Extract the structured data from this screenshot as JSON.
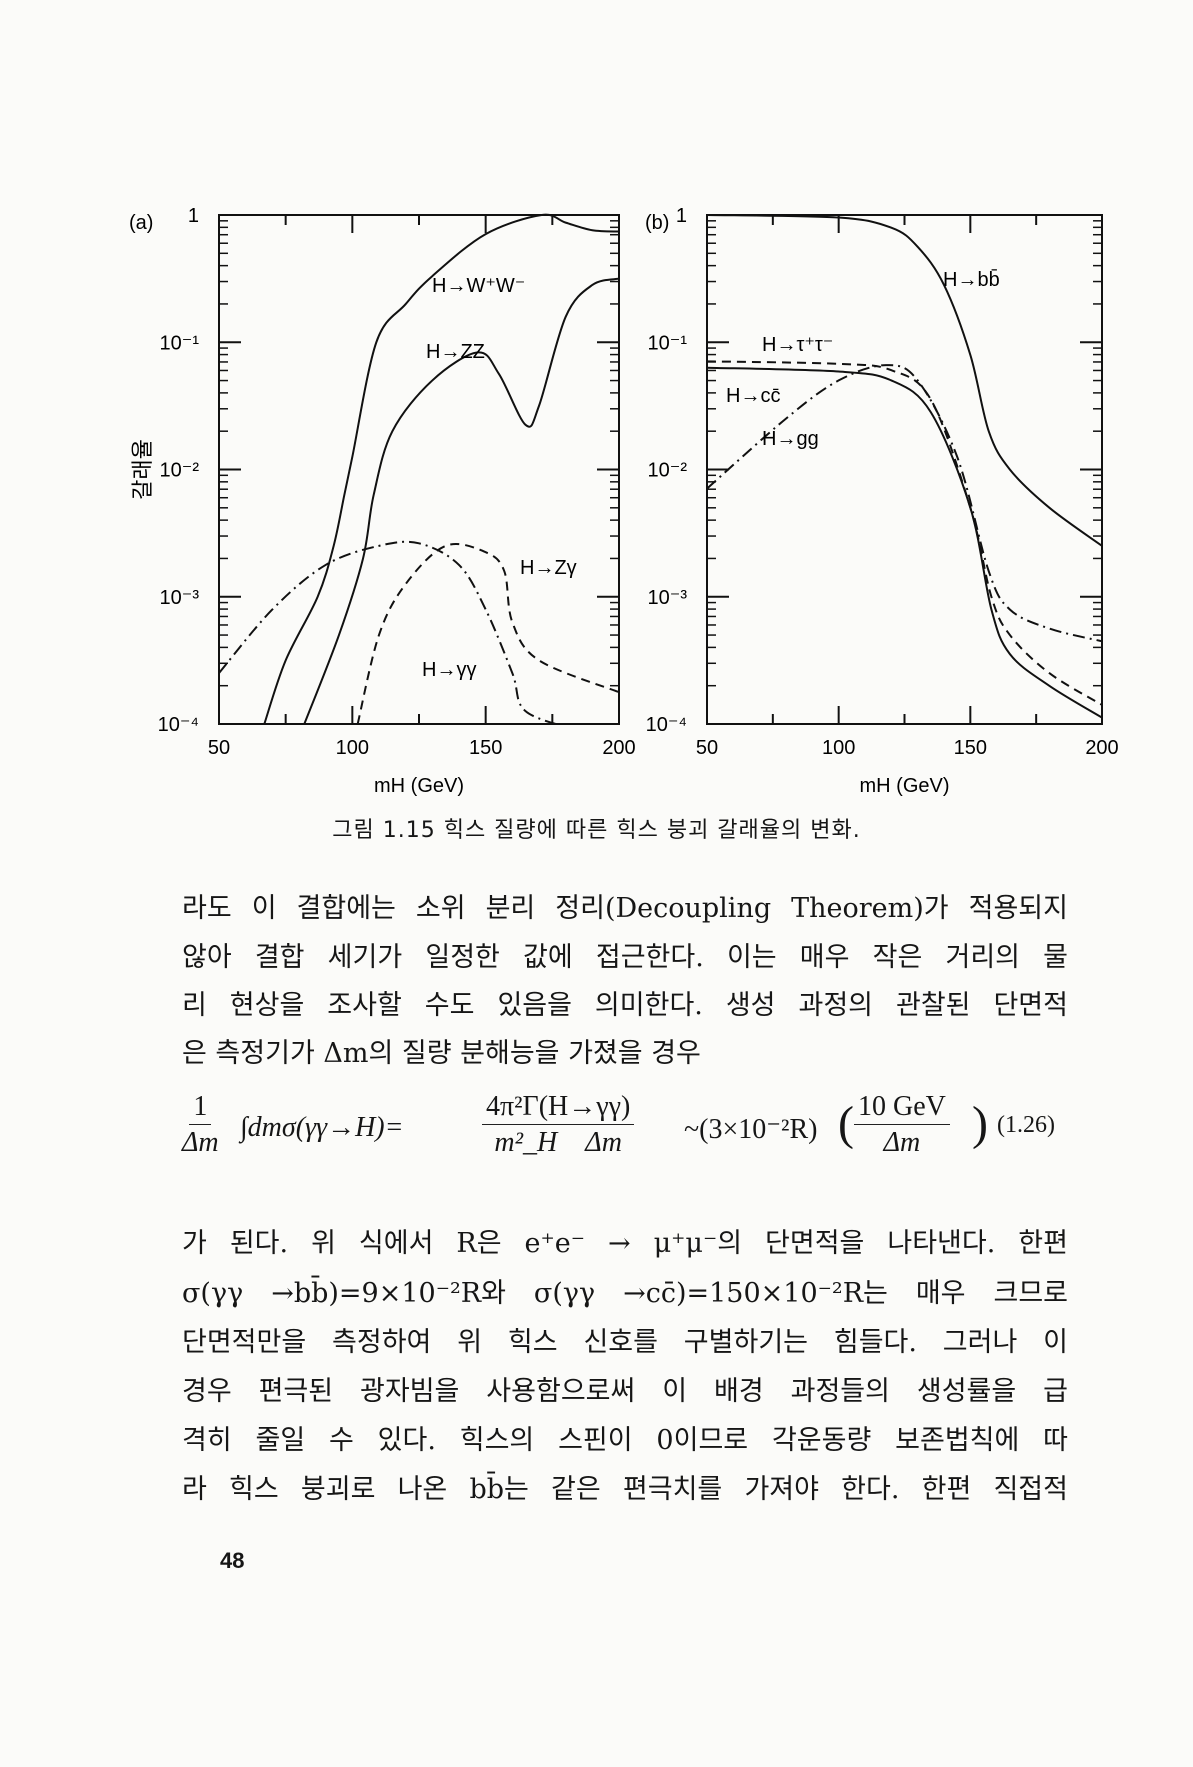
{
  "figure": {
    "caption": "그림 1.15  힉스 질량에 따른 힉스 붕괴 갈래율의 변화.",
    "y_axis_label": "갈래율"
  },
  "chart_data": [
    {
      "type": "line",
      "panel_label": "(a)",
      "xlabel": "mH (GeV)",
      "ylabel": "갈래율",
      "xlim": [
        50,
        200
      ],
      "ylim": [
        0.0001,
        1
      ],
      "yscale": "log",
      "x_ticks": [
        "50",
        "100",
        "150",
        "200"
      ],
      "y_ticks": [
        "1",
        "10⁻¹",
        "10⁻²",
        "10⁻³",
        "10⁻⁴"
      ],
      "series": [
        {
          "name": "H→W⁺W⁻",
          "style": "solid",
          "x": [
            67,
            75,
            87,
            93,
            97,
            100,
            109,
            120,
            130,
            150,
            171,
            180,
            190,
            200
          ],
          "log10_y": [
            -4,
            -3.5,
            -3,
            -2.6,
            -2.2,
            -1.9,
            -1,
            -0.7,
            -0.48,
            -0.15,
            0,
            -0.06,
            -0.12,
            -0.13
          ]
        },
        {
          "name": "H→ZZ",
          "style": "solid",
          "x": [
            82,
            95,
            104,
            108,
            115,
            130,
            147,
            155,
            165,
            170,
            180,
            190,
            200
          ],
          "log10_y": [
            -4,
            -3.3,
            -2.7,
            -2.2,
            -1.7,
            -1.3,
            -1.08,
            -1.25,
            -1.65,
            -1.5,
            -0.8,
            -0.55,
            -0.5
          ]
        },
        {
          "name": "H→Zγ",
          "style": "dashed",
          "x": [
            102,
            110,
            120,
            135,
            150,
            157,
            160,
            170,
            200
          ],
          "log10_y": [
            -4,
            -3.3,
            -2.9,
            -2.6,
            -2.65,
            -2.8,
            -3.2,
            -3.5,
            -3.75
          ]
        },
        {
          "name": "H→γγ",
          "style": "dashdot",
          "x": [
            50,
            70,
            90,
            110,
            125,
            140,
            150,
            160,
            165,
            185
          ],
          "log10_y": [
            -3.6,
            -3.1,
            -2.75,
            -2.6,
            -2.58,
            -2.75,
            -3.1,
            -3.6,
            -3.9,
            -4.05
          ]
        }
      ]
    },
    {
      "type": "line",
      "panel_label": "(b)",
      "xlabel": "mH (GeV)",
      "ylabel": "",
      "xlim": [
        50,
        200
      ],
      "ylim": [
        0.0001,
        1
      ],
      "yscale": "log",
      "x_ticks": [
        "50",
        "100",
        "150",
        "200"
      ],
      "y_ticks": [
        "1",
        "10⁻¹",
        "10⁻²",
        "10⁻³",
        "10⁻⁴"
      ],
      "series": [
        {
          "name": "H→bb̄",
          "style": "solid",
          "x": [
            50,
            100,
            120,
            130,
            140,
            150,
            157,
            165,
            180,
            200
          ],
          "log10_y": [
            0,
            -0.02,
            -0.1,
            -0.25,
            -0.55,
            -1.1,
            -1.7,
            -2.0,
            -2.3,
            -2.6
          ]
        },
        {
          "name": "H→τ⁺τ⁻",
          "style": "dashed",
          "x": [
            50,
            100,
            120,
            135,
            150,
            158,
            165,
            180,
            200
          ],
          "log10_y": [
            -1.15,
            -1.17,
            -1.22,
            -1.45,
            -2.3,
            -3.0,
            -3.3,
            -3.6,
            -3.85
          ]
        },
        {
          "name": "H→cc̄",
          "style": "solid",
          "x": [
            50,
            100,
            120,
            135,
            150,
            158,
            165,
            180,
            200
          ],
          "log10_y": [
            -1.2,
            -1.23,
            -1.3,
            -1.55,
            -2.3,
            -3.1,
            -3.45,
            -3.7,
            -3.95
          ]
        },
        {
          "name": "H→gg",
          "style": "dashdot",
          "x": [
            50,
            80,
            100,
            118,
            130,
            145,
            157,
            165,
            180,
            200
          ],
          "log10_y": [
            -2.15,
            -1.6,
            -1.3,
            -1.18,
            -1.3,
            -1.9,
            -2.8,
            -3.1,
            -3.25,
            -3.35
          ]
        }
      ]
    }
  ],
  "paragraph1": [
    "라도 이 결합에는 소위 분리 정리(Decoupling Theorem)가 적용되지",
    "않아 결합 세기가 일정한 값에 접근한다. 이는 매우 작은 거리의 물",
    "리 현상을 조사할 수도 있음을 의미한다. 생성 과정의 관찰된 단면적",
    "은 측정기가 Δm의 질량 분해능을 가졌을 경우"
  ],
  "equation": {
    "lhs_num": "1",
    "lhs_den": "Δm",
    "integral": "∫dmσ(γγ→H)=",
    "mid_num": "4π²Γ(H→γγ)",
    "mid_den": "m²_H    Δm",
    "approx": "~(3×10⁻²R)",
    "rhs_num": "10 GeV",
    "rhs_den": "Δm",
    "number": "(1.26)"
  },
  "paragraph2": [
    "가 된다. 위 식에서 R은 e⁺e⁻ → μ⁺μ⁻의 단면적을 나타낸다. 한편",
    "σ(γγ →bb̄)=9×10⁻²R와  σ(γγ →cc̄)=150×10⁻²R는 매우 크므로",
    "단면적만을 측정하여 위 힉스 신호를 구별하기는 힘들다. 그러나 이",
    "경우 편극된 광자빔을 사용함으로써 이 배경 과정들의 생성률을 급",
    "격히 줄일 수 있다. 힉스의 스핀이 0이므로 각운동량 보존법칙에 따",
    "라 힉스 붕괴로 나온 bb̄는 같은 편극치를 가져야 한다. 한편 직접적"
  ],
  "page_number": "48"
}
